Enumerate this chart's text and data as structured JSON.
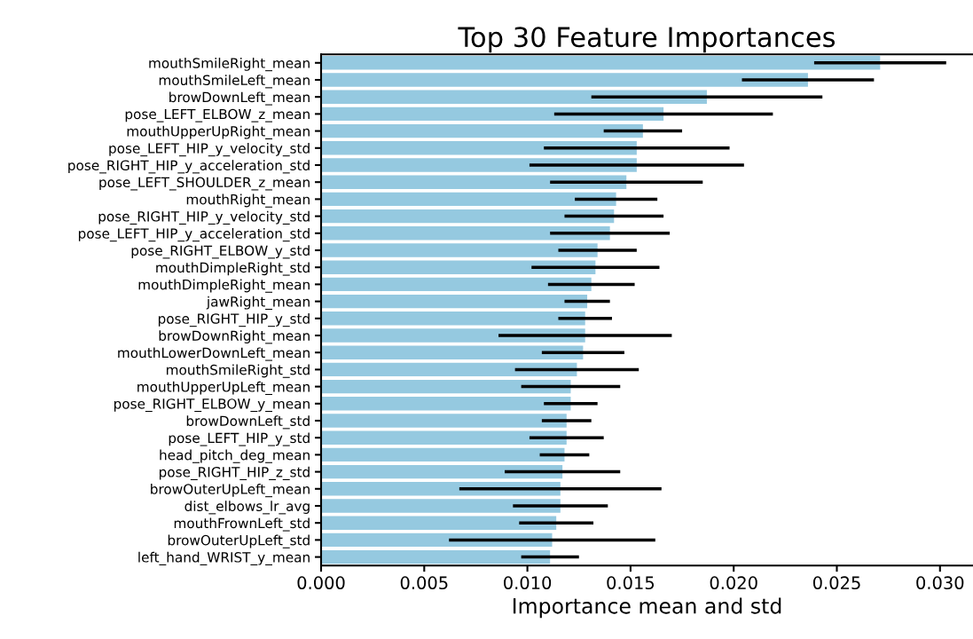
{
  "chart_data": {
    "type": "bar",
    "orientation": "horizontal",
    "title": "Top 30 Feature Importances",
    "xlabel": "Importance mean and std",
    "categories": [
      "mouthSmileRight_mean",
      "mouthSmileLeft_mean",
      "browDownLeft_mean",
      "pose_LEFT_ELBOW_z_mean",
      "mouthUpperUpRight_mean",
      "pose_LEFT_HIP_y_velocity_std",
      "pose_RIGHT_HIP_y_acceleration_std",
      "pose_LEFT_SHOULDER_z_mean",
      "mouthRight_mean",
      "pose_RIGHT_HIP_y_velocity_std",
      "pose_LEFT_HIP_y_acceleration_std",
      "pose_RIGHT_ELBOW_y_std",
      "mouthDimpleRight_std",
      "mouthDimpleRight_mean",
      "jawRight_mean",
      "pose_RIGHT_HIP_y_std",
      "browDownRight_mean",
      "mouthLowerDownLeft_mean",
      "mouthSmileRight_std",
      "mouthUpperUpLeft_mean",
      "pose_RIGHT_ELBOW_y_mean",
      "browDownLeft_std",
      "pose_LEFT_HIP_y_std",
      "head_pitch_deg_mean",
      "pose_RIGHT_HIP_z_std",
      "browOuterUpLeft_mean",
      "dist_elbows_lr_avg",
      "mouthFrownLeft_std",
      "browOuterUpLeft_std",
      "left_hand_WRIST_y_mean"
    ],
    "values": [
      0.0271,
      0.0236,
      0.0187,
      0.0166,
      0.0156,
      0.0153,
      0.0153,
      0.0148,
      0.0143,
      0.0142,
      0.014,
      0.0134,
      0.0133,
      0.0131,
      0.0129,
      0.0128,
      0.0128,
      0.0127,
      0.0124,
      0.0121,
      0.0121,
      0.0119,
      0.0119,
      0.0118,
      0.0117,
      0.0116,
      0.0116,
      0.0114,
      0.0112,
      0.0111
    ],
    "errors": [
      0.0032,
      0.0032,
      0.0056,
      0.0053,
      0.0019,
      0.0045,
      0.0052,
      0.0037,
      0.002,
      0.0024,
      0.0029,
      0.0019,
      0.0031,
      0.0021,
      0.0011,
      0.0013,
      0.0042,
      0.002,
      0.003,
      0.0024,
      0.0013,
      0.0012,
      0.0018,
      0.0012,
      0.0028,
      0.0049,
      0.0023,
      0.0018,
      0.005,
      0.0014
    ],
    "color": "#95c9e0",
    "xlim": [
      0,
      0.0316
    ],
    "xticks": [
      {
        "value": 0,
        "label": "0.000"
      },
      {
        "value": 0.005,
        "label": "0.005"
      },
      {
        "value": 0.01,
        "label": "0.010"
      },
      {
        "value": 0.015,
        "label": "0.015"
      },
      {
        "value": 0.02,
        "label": "0.020"
      },
      {
        "value": 0.025,
        "label": "0.025"
      },
      {
        "value": 0.03,
        "label": "0.030"
      }
    ],
    "grid": false,
    "legend": false
  }
}
